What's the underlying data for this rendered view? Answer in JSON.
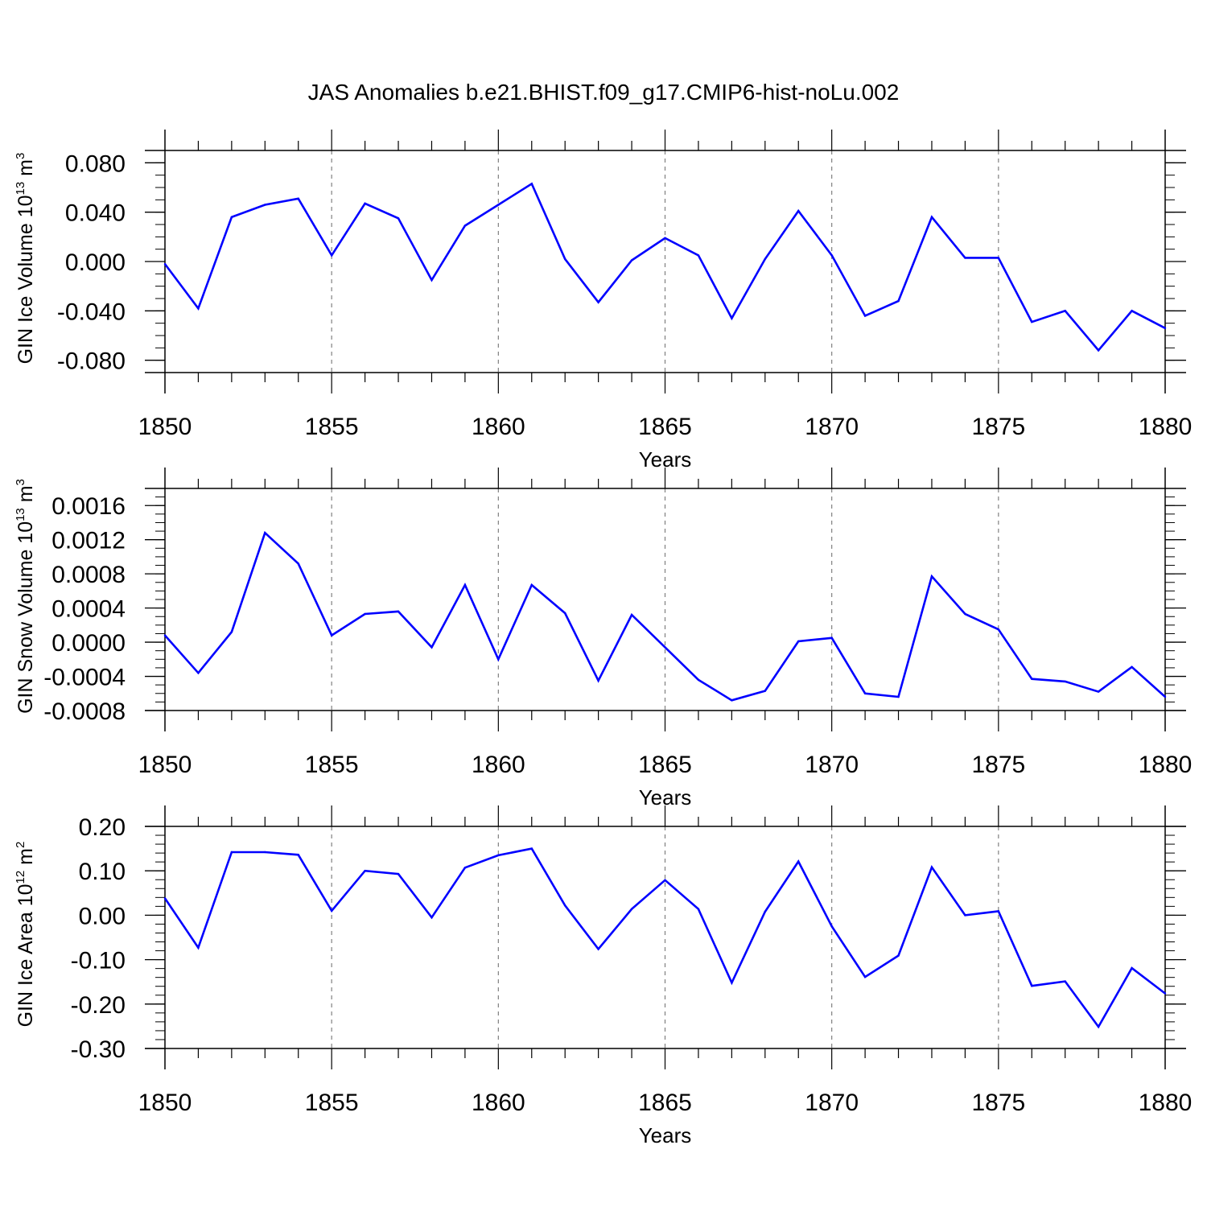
{
  "title": "JAS Anomalies b.e21.BHIST.f09_g17.CMIP6-hist-noLu.002",
  "colors": {
    "line": "#0000ff",
    "axis": "#000000",
    "grid": "#808080"
  },
  "chart_data": [
    {
      "type": "line",
      "ylabel": {
        "main": "GIN Ice Volume 10",
        "sup": "13",
        "unit": " m",
        "unit_sup": "3"
      },
      "xlabel": "Years",
      "xlim": [
        1850,
        1880
      ],
      "ylim": [
        -0.09,
        0.09
      ],
      "xticks": [
        "1850",
        "1855",
        "1860",
        "1865",
        "1870",
        "1875",
        "1880"
      ],
      "yticks": [
        {
          "v": 0.08,
          "label": "0.080"
        },
        {
          "v": 0.04,
          "label": "0.040"
        },
        {
          "v": 0.0,
          "label": "0.000"
        },
        {
          "v": -0.04,
          "label": "-0.040"
        },
        {
          "v": -0.08,
          "label": "-0.080"
        }
      ],
      "yminor_step": 0.01,
      "grid": "vertical-dashed",
      "x": [
        1850,
        1851,
        1852,
        1853,
        1854,
        1855,
        1856,
        1857,
        1858,
        1859,
        1860,
        1861,
        1862,
        1863,
        1864,
        1865,
        1866,
        1867,
        1868,
        1869,
        1870,
        1871,
        1872,
        1873,
        1874,
        1875,
        1876,
        1877,
        1878,
        1879,
        1880
      ],
      "values": [
        -0.002,
        -0.038,
        0.036,
        0.046,
        0.051,
        0.005,
        0.047,
        0.035,
        -0.015,
        0.029,
        0.046,
        0.063,
        0.002,
        -0.033,
        0.001,
        0.019,
        0.005,
        -0.046,
        0.002,
        0.041,
        0.005,
        -0.044,
        -0.032,
        0.036,
        0.003,
        0.003,
        -0.049,
        -0.04,
        -0.072,
        -0.04,
        -0.054
      ]
    },
    {
      "type": "line",
      "ylabel": {
        "main": "GIN Snow Volume 10",
        "sup": "13",
        "unit": " m",
        "unit_sup": "3"
      },
      "xlabel": "Years",
      "xlim": [
        1850,
        1880
      ],
      "ylim": [
        -0.0008,
        0.0018
      ],
      "xticks": [
        "1850",
        "1855",
        "1860",
        "1865",
        "1870",
        "1875",
        "1880"
      ],
      "yticks": [
        {
          "v": 0.0016,
          "label": "0.0016"
        },
        {
          "v": 0.0012,
          "label": "0.0012"
        },
        {
          "v": 0.0008,
          "label": "0.0008"
        },
        {
          "v": 0.0004,
          "label": "0.0004"
        },
        {
          "v": 0.0,
          "label": "0.0000"
        },
        {
          "v": -0.0004,
          "label": "-0.0004"
        },
        {
          "v": -0.0008,
          "label": "-0.0008"
        }
      ],
      "yminor_step": 0.0001,
      "grid": "vertical-dashed",
      "x": [
        1850,
        1851,
        1852,
        1853,
        1854,
        1855,
        1856,
        1857,
        1858,
        1859,
        1860,
        1861,
        1862,
        1863,
        1864,
        1865,
        1866,
        1867,
        1868,
        1869,
        1870,
        1871,
        1872,
        1873,
        1874,
        1875,
        1876,
        1877,
        1878,
        1879,
        1880
      ],
      "values": [
        8e-05,
        -0.00036,
        0.00012,
        0.00128,
        0.00092,
        8e-05,
        0.00033,
        0.00036,
        -6e-05,
        0.00067,
        -0.0002,
        0.00067,
        0.00034,
        -0.00045,
        0.00032,
        -6e-05,
        -0.00044,
        -0.00068,
        -0.00057,
        1e-05,
        5e-05,
        -0.0006,
        -0.00064,
        0.00077,
        0.00033,
        0.00015,
        -0.00043,
        -0.00046,
        -0.00058,
        -0.00029,
        -0.00064
      ]
    },
    {
      "type": "line",
      "ylabel": {
        "main": "GIN Ice Area 10",
        "sup": "12",
        "unit": " m",
        "unit_sup": "2"
      },
      "xlabel": "Years",
      "xlim": [
        1850,
        1880
      ],
      "ylim": [
        -0.3,
        0.2
      ],
      "xticks": [
        "1850",
        "1855",
        "1860",
        "1865",
        "1870",
        "1875",
        "1880"
      ],
      "yticks": [
        {
          "v": 0.2,
          "label": "0.20"
        },
        {
          "v": 0.1,
          "label": "0.10"
        },
        {
          "v": 0.0,
          "label": "0.00"
        },
        {
          "v": -0.1,
          "label": "-0.10"
        },
        {
          "v": -0.2,
          "label": "-0.20"
        },
        {
          "v": -0.3,
          "label": "-0.30"
        }
      ],
      "yminor_step": 0.02,
      "grid": "vertical-dashed",
      "x": [
        1850,
        1851,
        1852,
        1853,
        1854,
        1855,
        1856,
        1857,
        1858,
        1859,
        1860,
        1861,
        1862,
        1863,
        1864,
        1865,
        1866,
        1867,
        1868,
        1869,
        1870,
        1871,
        1872,
        1873,
        1874,
        1875,
        1876,
        1877,
        1878,
        1879,
        1880
      ],
      "values": [
        0.038,
        -0.073,
        0.142,
        0.142,
        0.136,
        0.01,
        0.1,
        0.093,
        -0.005,
        0.107,
        0.135,
        0.15,
        0.022,
        -0.076,
        0.014,
        0.079,
        0.014,
        -0.152,
        0.008,
        0.121,
        -0.025,
        -0.139,
        -0.091,
        0.108,
        0.0,
        0.009,
        -0.159,
        -0.149,
        -0.251,
        -0.119,
        -0.176
      ]
    }
  ]
}
